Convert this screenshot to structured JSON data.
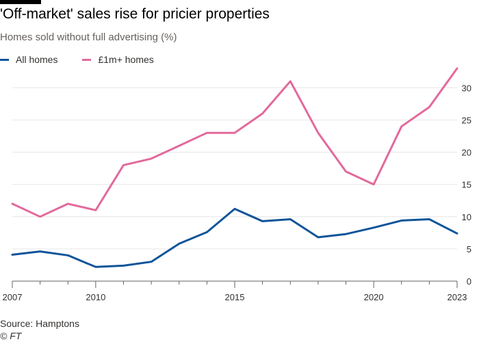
{
  "header": {
    "title": "'Off-market' sales rise for pricier properties",
    "subtitle": "Homes sold without full advertising (%)"
  },
  "footer": {
    "source": "Source: Hamptons",
    "credit": "© FT"
  },
  "colors": {
    "all_homes": "#0f5499",
    "million_homes": "#e2699b",
    "grid": "#e6e6e6",
    "axis": "#66605c"
  },
  "chart_data": {
    "type": "line",
    "title": "'Off-market' sales rise for pricier properties",
    "subtitle": "Homes sold without full advertising (%)",
    "xlabel": "",
    "ylabel": "",
    "x": [
      2007,
      2008,
      2009,
      2010,
      2011,
      2012,
      2013,
      2014,
      2015,
      2016,
      2017,
      2018,
      2019,
      2020,
      2021,
      2022,
      2023
    ],
    "xlim": [
      2007,
      2023
    ],
    "ylim": [
      0,
      33
    ],
    "x_ticks": [
      2007,
      2010,
      2015,
      2020,
      2023
    ],
    "y_ticks": [
      0,
      5,
      10,
      15,
      20,
      25,
      30
    ],
    "grid": true,
    "legend_position": "top-left",
    "series": [
      {
        "name": "All homes",
        "color": "#0f5499",
        "values": [
          4.1,
          4.6,
          4.0,
          2.2,
          2.4,
          3.0,
          5.8,
          7.6,
          11.2,
          9.3,
          9.6,
          6.8,
          7.3,
          8.3,
          9.4,
          9.6,
          7.4
        ]
      },
      {
        "name": "£1m+ homes",
        "color": "#e2699b",
        "values": [
          12.0,
          10.0,
          12.0,
          11.0,
          18.0,
          19.0,
          21.0,
          23.0,
          23.0,
          26.0,
          31.0,
          23.0,
          17.0,
          15.0,
          24.0,
          27.0,
          33.0
        ]
      }
    ]
  }
}
